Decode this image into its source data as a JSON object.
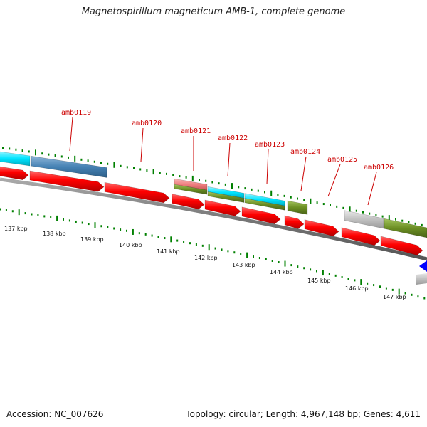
{
  "title": "Magnetospirillum magneticum AMB-1, complete genome",
  "footer": {
    "accession": "Accession: NC_007626",
    "summary": "Topology: circular; Length: 4,967,148 bp; Genes: 4,611"
  },
  "gene_labels": [
    "amb0119",
    "amb0120",
    "amb0121",
    "amb0122",
    "amb0123",
    "amb0124",
    "amb0125",
    "amb0126"
  ],
  "kbp_labels": [
    "137 kbp",
    "138 kbp",
    "139 kbp",
    "140 kbp",
    "141 kbp",
    "142 kbp",
    "143 kbp",
    "144 kbp",
    "145 kbp",
    "146 kbp",
    "147 kbp"
  ],
  "colors": {
    "gene_forward": "#ff0000",
    "cyan": "#00e5ff",
    "steelblue": "#4682b4",
    "olive": "#6b8e23",
    "pink": "#f08080",
    "gray": "#c0c0c0",
    "tick_green": "#008000",
    "backbone": "#777777",
    "blue": "#0000ff",
    "label_red": "#cc0000"
  }
}
